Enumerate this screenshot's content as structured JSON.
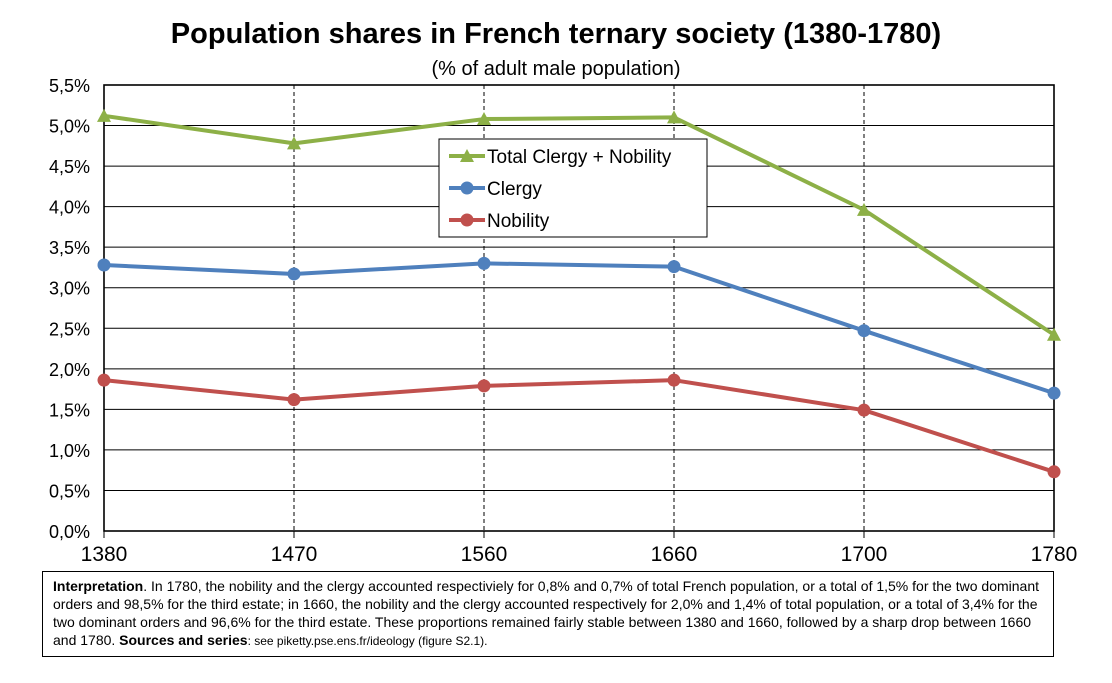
{
  "title": "Population shares in French ternary society (1380-1780)",
  "subtitle": "(% of adult male population)",
  "chart_data": {
    "type": "line",
    "x": [
      "1380",
      "1470",
      "1560",
      "1660",
      "1700",
      "1780"
    ],
    "ylim": [
      0,
      5.5
    ],
    "yticks": [
      "0,0%",
      "0,5%",
      "1,0%",
      "1,5%",
      "2,0%",
      "2,5%",
      "3,0%",
      "3,5%",
      "4,0%",
      "4,5%",
      "5,0%",
      "5,5%"
    ],
    "grid": true,
    "legend_position": "top-center",
    "series": [
      {
        "name": "Total Clergy + Nobility",
        "color": "#8db047",
        "marker": "triangle",
        "values": [
          5.12,
          4.78,
          5.08,
          5.1,
          3.96,
          2.42
        ]
      },
      {
        "name": "Clergy",
        "color": "#4f80bd",
        "marker": "circle",
        "values": [
          3.28,
          3.17,
          3.3,
          3.26,
          2.47,
          1.7
        ]
      },
      {
        "name": "Nobility",
        "color": "#c0504d",
        "marker": "circle",
        "values": [
          1.86,
          1.62,
          1.79,
          1.86,
          1.49,
          0.73
        ]
      }
    ]
  },
  "interpretation": {
    "lead": "Interpretation",
    "body": ". In 1780, the nobility and the clergy accounted respectiviely for 0,8% and 0,7% of total French population, or a total of 1,5% for the two dominant orders and 98,5% for the third estate; in 1660, the nobility and the clergy accounted respectively for 2,0% and 1,4% of total population, or a total of 3,4% for the two dominant orders and 96,6% for the third estate. These proportions remained fairly stable between 1380 and 1660, followed by a sharp drop between 1660 and 1780. ",
    "sources_lead": "Sources and series",
    "sources_text": ": see piketty.pse.ens.fr/ideology (figure S2.1)."
  }
}
